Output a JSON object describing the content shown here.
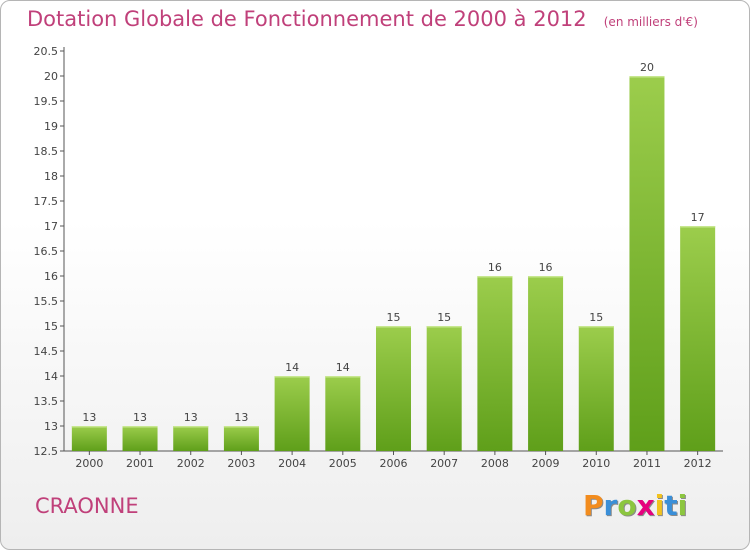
{
  "chart_data": {
    "type": "bar",
    "title": "Dotation Globale de Fonctionnement de 2000 à 2012",
    "unit_note": "(en milliers d'€)",
    "categories": [
      "2000",
      "2001",
      "2002",
      "2003",
      "2004",
      "2005",
      "2006",
      "2007",
      "2008",
      "2009",
      "2010",
      "2011",
      "2012"
    ],
    "values": [
      13,
      13,
      13,
      13,
      14,
      14,
      15,
      15,
      16,
      16,
      15,
      20,
      17
    ],
    "data_labels": [
      "13",
      "13",
      "13",
      "13",
      "14",
      "14",
      "15",
      "15",
      "16",
      "16",
      "15",
      "20",
      "17"
    ],
    "ylim": [
      12.5,
      20.5
    ],
    "yticks": [
      "12.5",
      "13",
      "13.5",
      "14",
      "14.5",
      "15",
      "15.5",
      "16",
      "16.5",
      "17",
      "17.5",
      "18",
      "18.5",
      "19",
      "19.5",
      "20",
      "20.5"
    ],
    "grid": false,
    "legend": "none",
    "bar_color_top": "#9ccd4c",
    "bar_color_bottom": "#5f9f1a",
    "xlabel": "",
    "ylabel": ""
  },
  "place_name": "CRAONNE",
  "logo": {
    "letters": [
      "P",
      "r",
      "o",
      "x",
      "i",
      "t",
      "i"
    ],
    "colors": [
      "#f28c1e",
      "#3a8fd8",
      "#8cc63f",
      "#e6007e",
      "#f2c21e",
      "#3a8fd8",
      "#8cc63f"
    ]
  },
  "colors": {
    "accent": "#c0407a",
    "axis": "#555555"
  }
}
